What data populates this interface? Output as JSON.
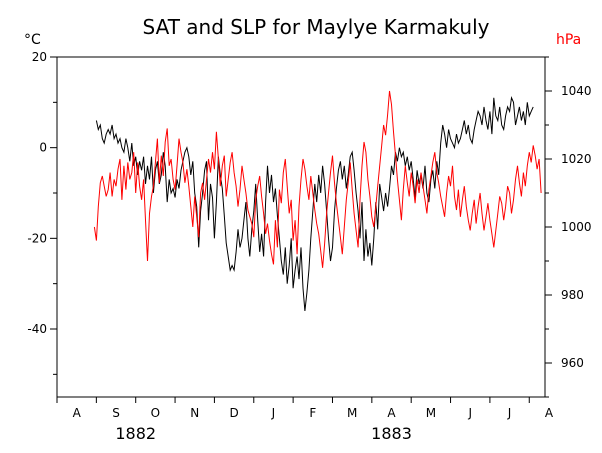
{
  "chart_data": {
    "type": "line",
    "title": "SAT and SLP for Maylye Karmakuly",
    "left_unit": "°C",
    "right_unit": "hPa",
    "colors": {
      "sat": "#000000",
      "slp": "#ff0000",
      "axis": "#000000"
    },
    "left_axis": {
      "min": -55,
      "max": 20,
      "ticks": [
        20,
        0,
        -20,
        -40
      ]
    },
    "right_axis": {
      "min": 950,
      "max": 1050,
      "ticks": [
        1040,
        1020,
        1000,
        980,
        960
      ]
    },
    "x_axis": {
      "start_month_index": 0,
      "end_month_index": 12.4,
      "months": [
        "A",
        "S",
        "O",
        "N",
        "D",
        "J",
        "F",
        "M",
        "A",
        "M",
        "J",
        "J",
        "A"
      ],
      "years": [
        {
          "label": "1882",
          "at_month_index": 2
        },
        {
          "label": "1883",
          "at_month_index": 8.5
        }
      ]
    },
    "series": [
      {
        "axis": "left",
        "color": "#000000",
        "start_month_index": 1.0,
        "step_months": 0.05,
        "values": [
          6,
          4,
          5,
          2,
          1,
          3,
          4,
          3,
          5,
          2,
          3,
          1,
          2,
          0,
          -1,
          2,
          0,
          -3,
          1,
          -4,
          -2,
          -6,
          -3,
          -5,
          -2,
          -8,
          -4,
          -7,
          -2,
          -10,
          -5,
          -3,
          -8,
          -6,
          -1,
          -4,
          -12,
          -7,
          -10,
          -9,
          -11,
          -7,
          -9,
          -5,
          -3,
          -1,
          0,
          -2,
          -6,
          -3,
          -10,
          -13,
          -22,
          -14,
          -10,
          -5,
          -3,
          -16,
          -8,
          -11,
          -20,
          -12,
          -2,
          -6,
          -9,
          -15,
          -21,
          -24,
          -27,
          -26,
          -27,
          -23,
          -18,
          -22,
          -20,
          -16,
          -12,
          -20,
          -24,
          -18,
          -14,
          -8,
          -16,
          -23,
          -19,
          -24,
          -12,
          -4,
          -10,
          -6,
          -12,
          -9,
          -15,
          -20,
          -25,
          -28,
          -22,
          -30,
          -26,
          -20,
          -31,
          -27,
          -24,
          -29,
          -22,
          -31,
          -36,
          -32,
          -27,
          -20,
          -14,
          -8,
          -12,
          -6,
          -10,
          -4,
          -8,
          -14,
          -20,
          -25,
          -22,
          -14,
          -9,
          -5,
          -3,
          -7,
          -4,
          -9,
          -6,
          -2,
          -1,
          -5,
          -10,
          -14,
          -20,
          -12,
          -25,
          -18,
          -24,
          -21,
          -26,
          -20,
          -12,
          -18,
          -8,
          -11,
          -14,
          -10,
          -13,
          -9,
          -4,
          -6,
          -1,
          -3,
          0,
          -2,
          -1,
          -4,
          -2,
          -5,
          -3,
          -7,
          -11,
          -5,
          -8,
          -6,
          -9,
          -4,
          -10,
          -12,
          -7,
          -5,
          -9,
          -3,
          -6,
          1,
          5,
          3,
          0,
          4,
          2,
          1,
          0,
          3,
          1,
          2,
          4,
          6,
          3,
          5,
          2,
          1,
          4,
          6,
          8,
          7,
          5,
          9,
          6,
          4,
          8,
          3,
          11,
          7,
          6,
          9,
          5,
          4,
          7,
          9,
          8,
          11,
          10,
          5,
          7,
          9,
          6,
          8,
          5,
          10,
          7,
          8,
          9
        ],
        "name": ""
      },
      {
        "axis": "right",
        "color": "#ff0000",
        "start_month_index": 0.95,
        "step_months": 0.05,
        "values": [
          1000,
          996,
          1006,
          1013,
          1015,
          1012,
          1009,
          1011,
          1016,
          1009,
          1014,
          1012,
          1017,
          1020,
          1008,
          1018,
          1011,
          1019,
          1014,
          1016,
          1022,
          1010,
          1019,
          1012,
          1008,
          1014,
          1002,
          990,
          1004,
          1009,
          1012,
          1019,
          1026,
          1013,
          1021,
          1015,
          1025,
          1029,
          1018,
          1020,
          1014,
          1011,
          1018,
          1026,
          1022,
          1019,
          1013,
          1017,
          1012,
          1006,
          1000,
          1009,
          1003,
          997,
          1010,
          1013,
          1008,
          1014,
          1020,
          1016,
          1022,
          1017,
          1028,
          1020,
          1012,
          1018,
          1021,
          1009,
          1014,
          1019,
          1022,
          1016,
          1012,
          1006,
          1011,
          1018,
          1014,
          1010,
          1005,
          1003,
          1001,
          997,
          1008,
          1012,
          1015,
          1009,
          1004,
          998,
          1001,
          996,
          992,
          989,
          1002,
          994,
          1011,
          1007,
          1016,
          1020,
          1012,
          1004,
          1008,
          996,
          1002,
          992,
          1006,
          1014,
          1020,
          1017,
          1012,
          1008,
          1015,
          1010,
          1005,
          1001,
          998,
          993,
          988,
          995,
          1004,
          1010,
          1016,
          1021,
          1013,
          1007,
          1002,
          997,
          992,
          1000,
          1008,
          1013,
          1019,
          1011,
          1004,
          999,
          994,
          1008,
          1018,
          1025,
          1022,
          1014,
          1009,
          1003,
          1000,
          1006,
          1012,
          1018,
          1024,
          1030,
          1027,
          1033,
          1040,
          1036,
          1028,
          1021,
          1014,
          1008,
          1002,
          1011,
          1018,
          1013,
          1009,
          1016,
          1012,
          1007,
          1014,
          1010,
          1016,
          1012,
          1008,
          1004,
          1011,
          1015,
          1019,
          1022,
          1016,
          1013,
          1009,
          1006,
          1003,
          1010,
          1015,
          1012,
          1018,
          1009,
          1005,
          1011,
          1003,
          1008,
          1012,
          1006,
          1002,
          999,
          1004,
          1008,
          1001,
          1006,
          1010,
          1004,
          999,
          1003,
          1007,
          1002,
          998,
          994,
          999,
          1004,
          1009,
          1007,
          1002,
          1006,
          1012,
          1010,
          1004,
          1008,
          1014,
          1018,
          1013,
          1009,
          1016,
          1012,
          1018,
          1022,
          1019,
          1024,
          1021,
          1017,
          1020,
          1010
        ],
        "name": ""
      }
    ]
  }
}
